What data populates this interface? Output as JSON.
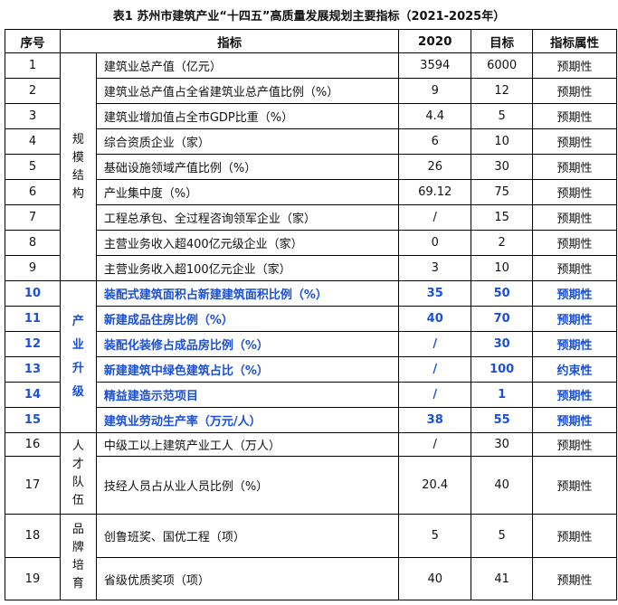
{
  "title": "表1 苏州市建筑产业“十四五”高质量发展规划主要指标（2021-2025年）",
  "headers": [
    "序号",
    "指标",
    "2020",
    "目标",
    "指标属性"
  ],
  "accent_color": "#1a4fd6",
  "categories": [
    {
      "label": [
        "规",
        "模",
        "结",
        "构"
      ]
    },
    {
      "label": [
        "产",
        "业",
        "升",
        "级"
      ]
    },
    {
      "label": [
        "人",
        "才",
        "队",
        "伍"
      ]
    },
    {
      "label": [
        "品",
        "牌",
        "培",
        "育"
      ]
    }
  ],
  "rows": [
    {
      "no": "1",
      "indicator": "建筑业总产值（亿元）",
      "y2020": "3594",
      "target": "6000",
      "attr": "预期性"
    },
    {
      "no": "2",
      "indicator": "建筑业总产值占全省建筑业总产值比例（%）",
      "y2020": "9",
      "target": "12",
      "attr": "预期性"
    },
    {
      "no": "3",
      "indicator": "建筑业增加值占全市GDP比重（%）",
      "y2020": "4.4",
      "target": "5",
      "attr": "预期性"
    },
    {
      "no": "4",
      "indicator": "综合资质企业（家）",
      "y2020": "6",
      "target": "10",
      "attr": "预期性"
    },
    {
      "no": "5",
      "indicator": "基础设施领域产值比例（%）",
      "y2020": "26",
      "target": "30",
      "attr": "预期性"
    },
    {
      "no": "6",
      "indicator": "产业集中度（%）",
      "y2020": "69.12",
      "target": "75",
      "attr": "预期性"
    },
    {
      "no": "7",
      "indicator": "工程总承包、全过程咨询领军企业（家）",
      "y2020": "/",
      "target": "15",
      "attr": "预期性"
    },
    {
      "no": "8",
      "indicator": "主营业务收入超400亿元级企业（家）",
      "y2020": "0",
      "target": "2",
      "attr": "预期性"
    },
    {
      "no": "9",
      "indicator": "主营业务收入超100亿元企业（家）",
      "y2020": "3",
      "target": "10",
      "attr": "预期性"
    },
    {
      "no": "10",
      "indicator": "装配式建筑面积占新建建筑面积比例（%）",
      "y2020": "35",
      "target": "50",
      "attr": "预期性"
    },
    {
      "no": "11",
      "indicator": "新建成品住房比例（%）",
      "y2020": "40",
      "target": "70",
      "attr": "预期性"
    },
    {
      "no": "12",
      "indicator": "装配化装修占成品房比例（%）",
      "y2020": "/",
      "target": "30",
      "attr": "预期性"
    },
    {
      "no": "13",
      "indicator": "新建建筑中绿色建筑占比（%）",
      "y2020": "/",
      "target": "100",
      "attr": "约束性"
    },
    {
      "no": "14",
      "indicator": "精益建造示范项目",
      "y2020": "/",
      "target": "1",
      "attr": "预期性"
    },
    {
      "no": "15",
      "indicator": "建筑业劳动生产率（万元/人）",
      "y2020": "38",
      "target": "55",
      "attr": "预期性"
    },
    {
      "no": "16",
      "indicator": "中级工以上建筑产业工人（万人）",
      "y2020": "/",
      "target": "30",
      "attr": "预期性"
    },
    {
      "no": "17",
      "indicator": "技经人员占从业人员比例（%）",
      "y2020": "20.4",
      "target": "40",
      "attr": "预期性"
    },
    {
      "no": "18",
      "indicator": "创鲁班奖、国优工程（项）",
      "y2020": "5",
      "target": "5",
      "attr": "预期性"
    },
    {
      "no": "19",
      "indicator": "省级优质奖项（项）",
      "y2020": "40",
      "target": "41",
      "attr": "预期性"
    }
  ]
}
